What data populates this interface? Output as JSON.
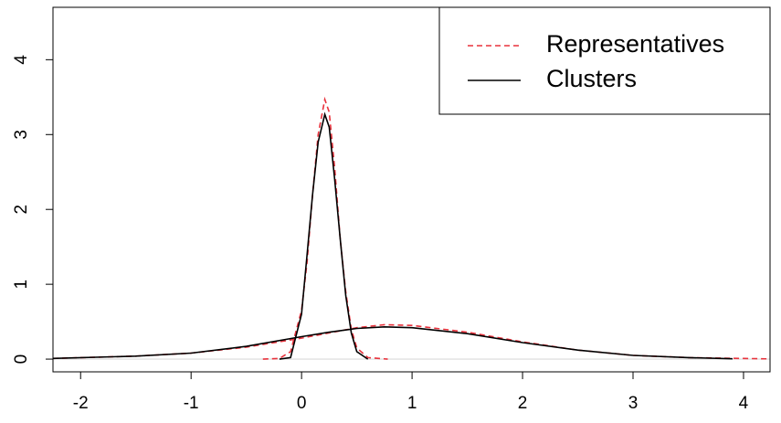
{
  "chart_data": {
    "type": "line",
    "xlim": [
      -2.25,
      4.24
    ],
    "ylim": [
      -0.17,
      4.7
    ],
    "xticks": [
      -2,
      -1,
      0,
      1,
      2,
      3,
      4
    ],
    "yticks": [
      0,
      1,
      2,
      3,
      4
    ],
    "reference_line": {
      "y": 0,
      "color": "#d9d9d9"
    },
    "legend": "top-right",
    "series": [
      {
        "name": "Representatives",
        "color": "#e8323c",
        "dashed": true,
        "x": [
          -0.35,
          -0.2,
          -0.1,
          0,
          0.05,
          0.1,
          0.15,
          0.21,
          0.25,
          0.3,
          0.35,
          0.4,
          0.45,
          0.5,
          0.6,
          0.78,
          null,
          -2.25,
          -1.5,
          -1,
          -0.5,
          0,
          0.25,
          0.5,
          0.75,
          1,
          1.5,
          2,
          2.5,
          3,
          3.5,
          4.24
        ],
        "values": [
          0,
          0.01,
          0.1,
          0.65,
          1.3,
          2.2,
          3.0,
          3.47,
          3.3,
          2.55,
          1.6,
          0.9,
          0.4,
          0.15,
          0.02,
          0,
          null,
          0.01,
          0.04,
          0.08,
          0.16,
          0.28,
          0.35,
          0.42,
          0.46,
          0.45,
          0.36,
          0.23,
          0.12,
          0.05,
          0.02,
          0.003
        ]
      },
      {
        "name": "Clusters",
        "color": "#000000",
        "dashed": false,
        "x": [
          -0.2,
          -0.1,
          0,
          0.05,
          0.1,
          0.15,
          0.21,
          0.25,
          0.3,
          0.35,
          0.4,
          0.45,
          0.5,
          0.6,
          null,
          -2.25,
          -1.5,
          -1,
          -0.5,
          0,
          0.25,
          0.5,
          0.75,
          1,
          1.5,
          2,
          2.5,
          3,
          3.5,
          3.9
        ],
        "values": [
          0,
          0.02,
          0.6,
          1.4,
          2.2,
          2.9,
          3.27,
          3.1,
          2.4,
          1.6,
          0.85,
          0.35,
          0.1,
          0,
          null,
          0.01,
          0.04,
          0.08,
          0.17,
          0.3,
          0.36,
          0.41,
          0.43,
          0.42,
          0.34,
          0.22,
          0.12,
          0.05,
          0.02,
          0.005
        ]
      }
    ]
  }
}
